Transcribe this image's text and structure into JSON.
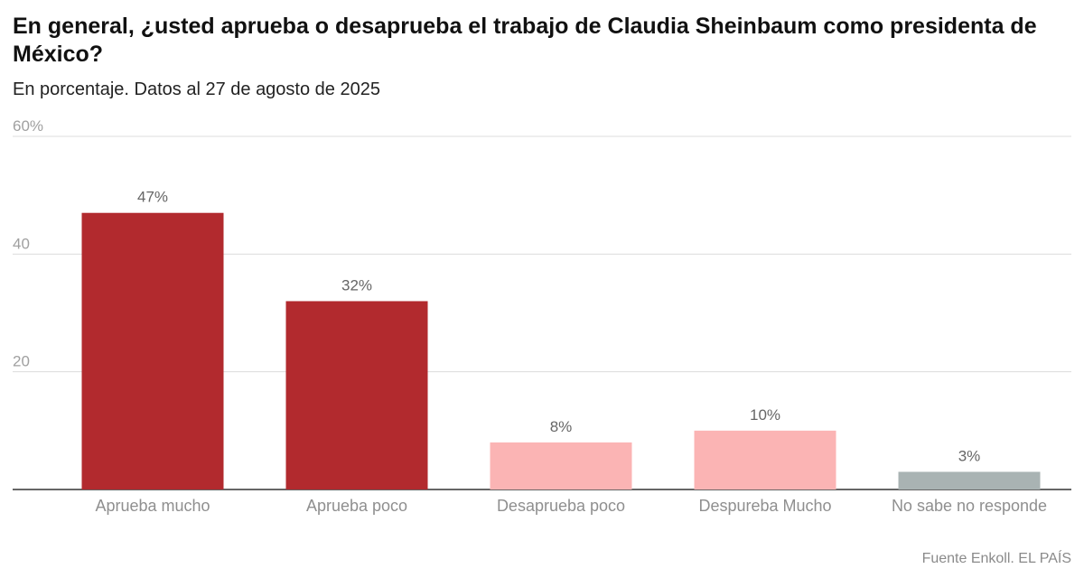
{
  "header": {
    "title": "En general, ¿usted aprueba o desaprueba el trabajo de Claudia Sheinbaum como presidenta de México?",
    "subtitle": "En porcentaje. Datos al 27 de agosto de 2025"
  },
  "footer": {
    "source": "Fuente Enkoll. EL PAÍS"
  },
  "chart_data": {
    "type": "bar",
    "title": "En general, ¿usted aprueba o desaprueba el trabajo de Claudia Sheinbaum como presidenta de México?",
    "subtitle": "En porcentaje. Datos al 27 de agosto de 2025",
    "categories": [
      "Aprueba mucho",
      "Aprueba poco",
      "Desaprueba poco",
      "Despureba Mucho",
      "No sabe no responde"
    ],
    "values": [
      47,
      32,
      8,
      10,
      3
    ],
    "value_labels": [
      "47%",
      "32%",
      "8%",
      "10%",
      "3%"
    ],
    "colors": [
      "#b22a2e",
      "#b22a2e",
      "#fbb4b4",
      "#fbb4b4",
      "#a9b3b3"
    ],
    "y_ticks": [
      20,
      40,
      60
    ],
    "y_tick_labels": [
      "20",
      "40",
      "60%"
    ],
    "ylim": [
      0,
      60
    ],
    "grid": true,
    "xlabel": "",
    "ylabel": ""
  }
}
